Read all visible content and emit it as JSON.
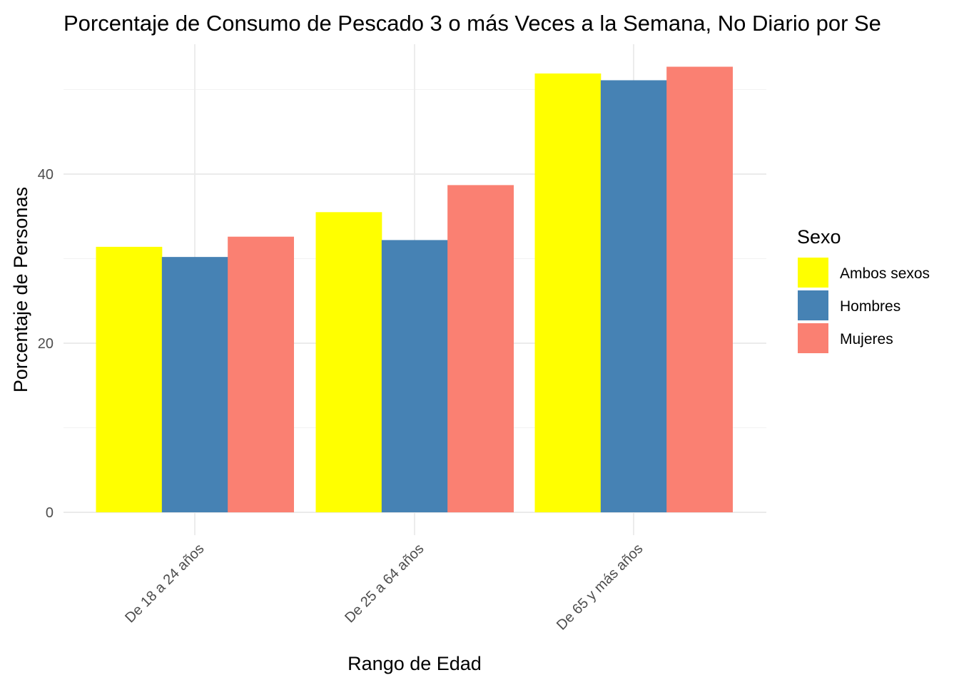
{
  "chart_data": {
    "type": "bar",
    "title": "Porcentaje de Consumo de Pescado 3 o más Veces a la Semana, No Diario por Se",
    "xlabel": "Rango de Edad",
    "ylabel": "Porcentaje de Personas",
    "categories": [
      "De 18 a 24 años",
      "De 25 a 64 años",
      "De 65 y más años"
    ],
    "series": [
      {
        "name": "Ambos sexos",
        "color": "#FFFF00",
        "values": [
          31.4,
          35.5,
          51.9
        ]
      },
      {
        "name": "Hombres",
        "color": "#4682B4",
        "values": [
          30.2,
          32.2,
          51.1
        ]
      },
      {
        "name": "Mujeres",
        "color": "#FA8072",
        "values": [
          32.6,
          38.7,
          52.7
        ]
      }
    ],
    "ylim": [
      0,
      55
    ],
    "yticks": [
      0,
      20,
      40
    ],
    "grid": true,
    "legend": {
      "title": "Sexo",
      "position": "right"
    }
  }
}
